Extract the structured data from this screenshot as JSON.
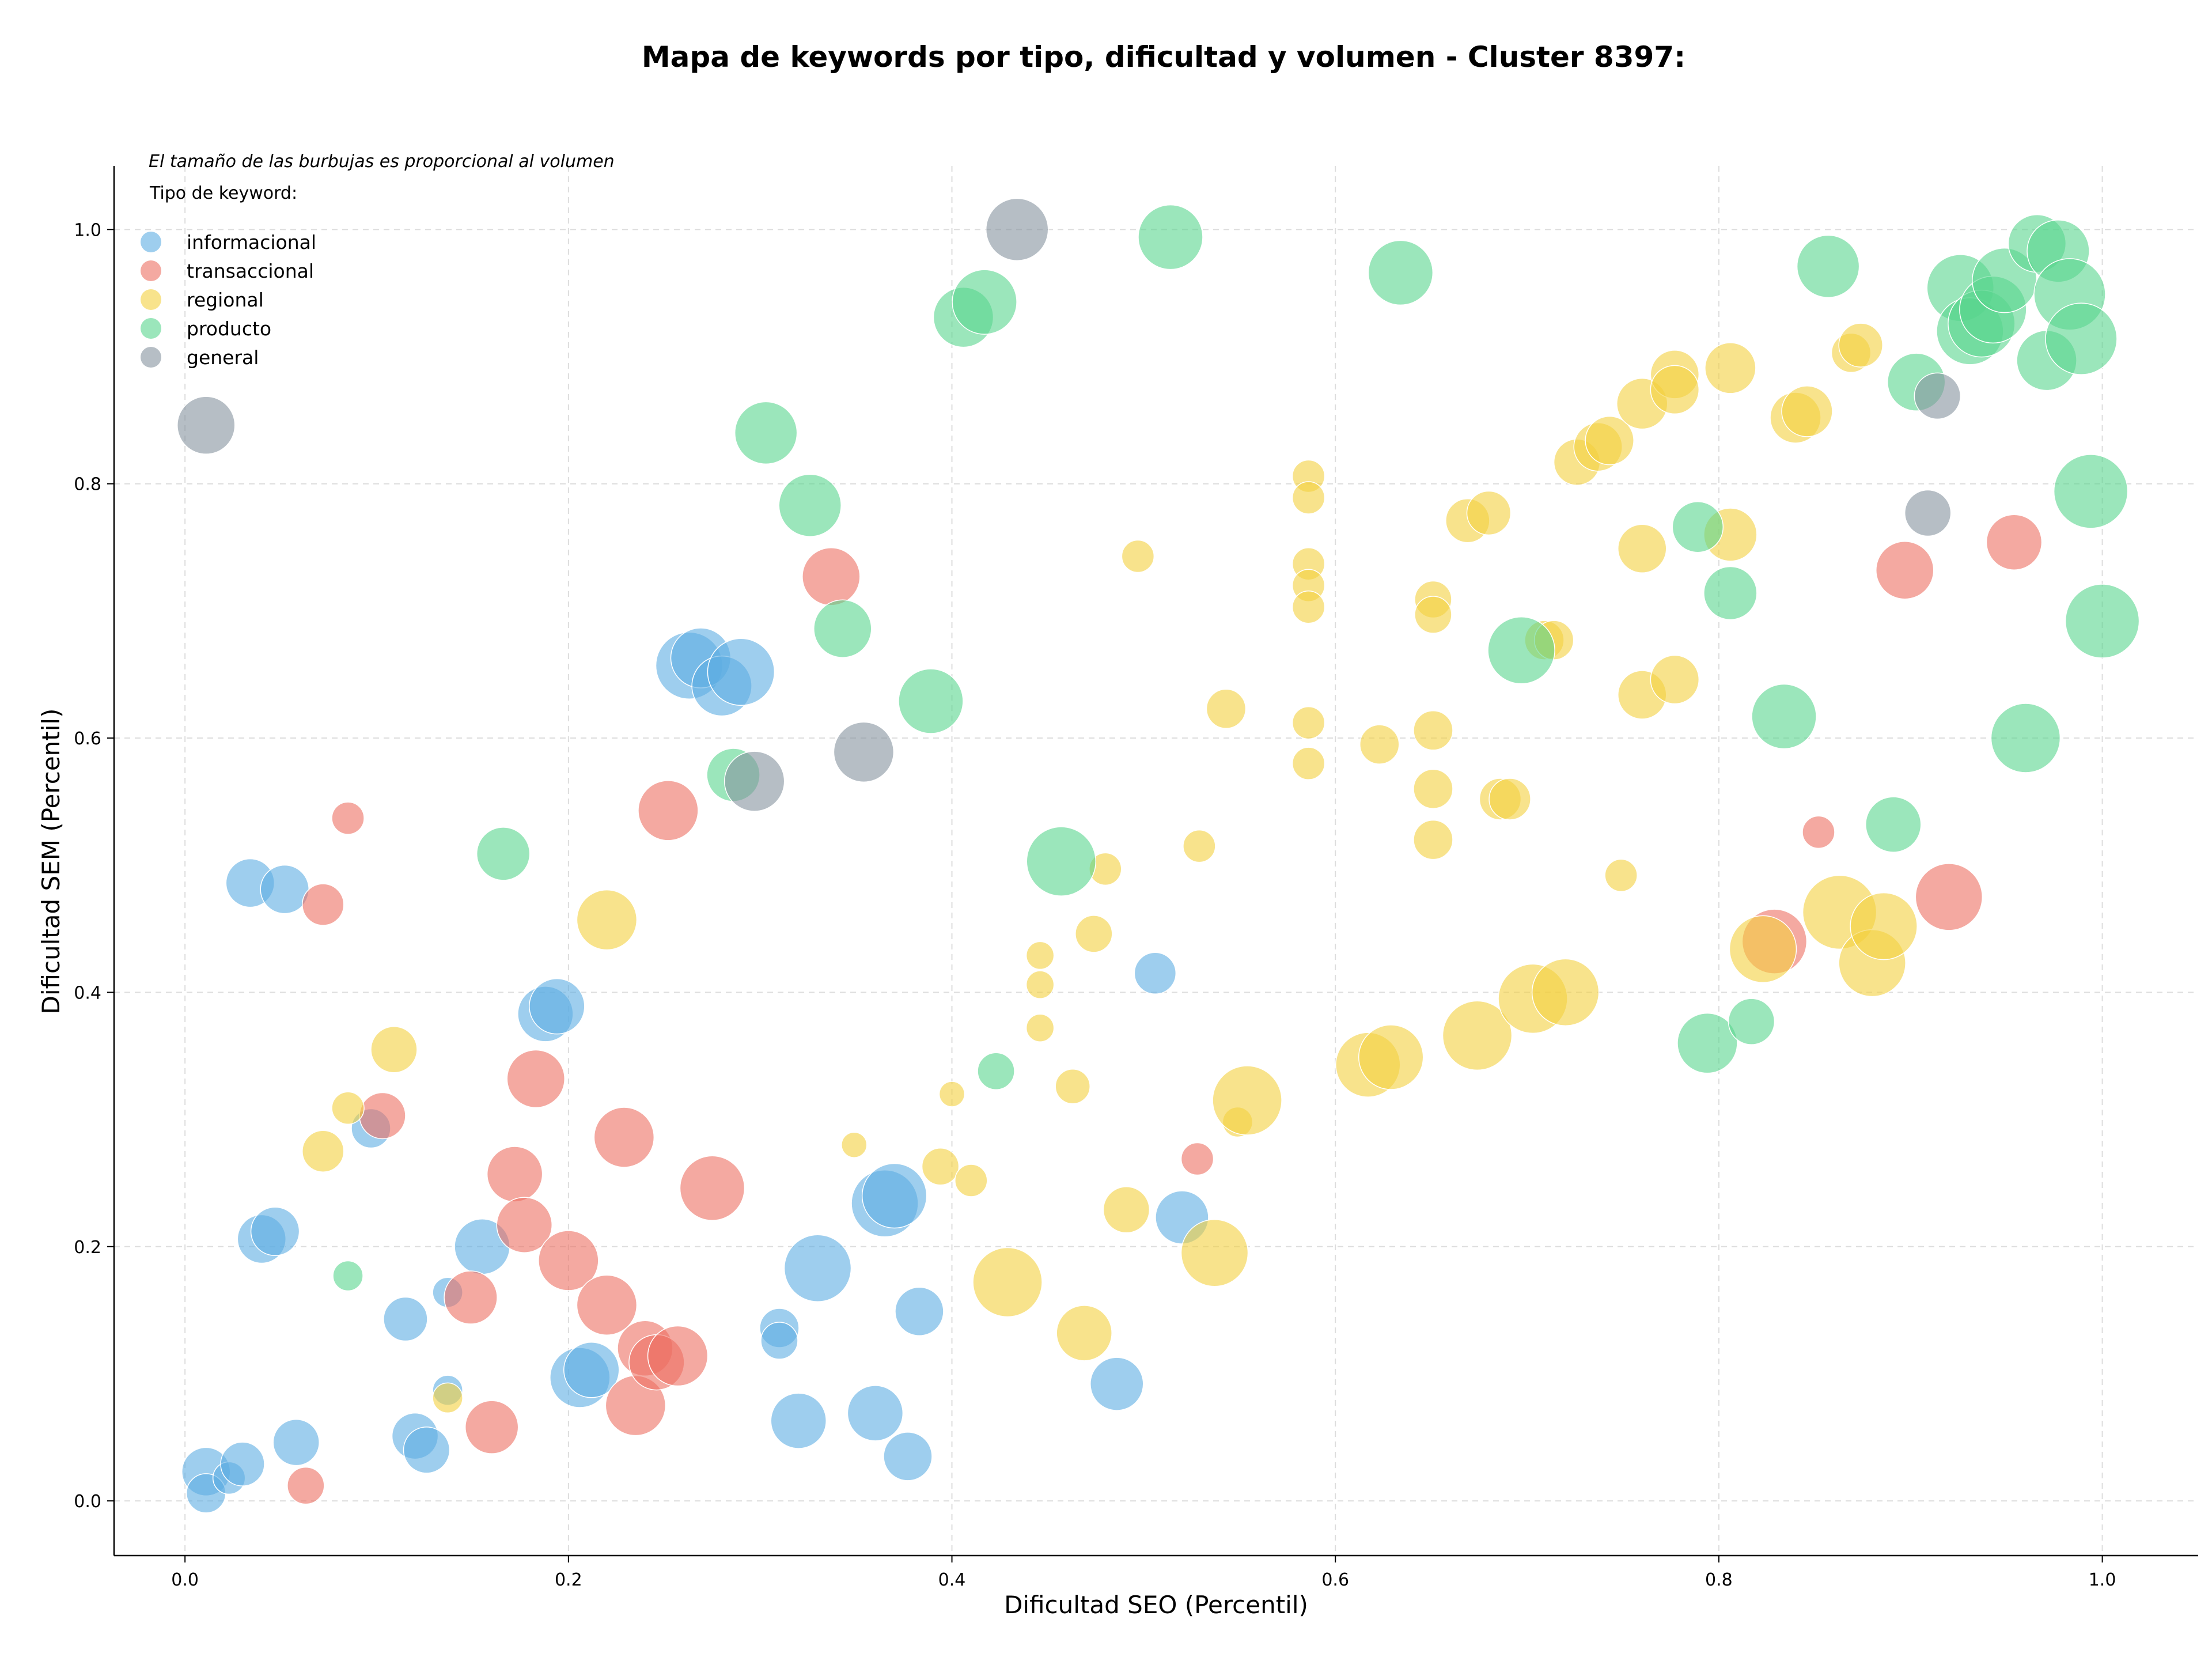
{
  "chart_data": {
    "type": "scatter",
    "title": "Mapa de keywords por tipo, dificultad y volumen - Cluster 8397:",
    "xlabel": "Dificultad SEO (Percentil)",
    "ylabel": "Dificultad SEM (Percentil)",
    "xlim": [
      -0.037,
      1.05
    ],
    "ylim": [
      -0.043,
      1.05
    ],
    "xticks": [
      "0.0",
      "0.2",
      "0.4",
      "0.6",
      "0.8",
      "1.0"
    ],
    "yticks": [
      "0.0",
      "0.2",
      "0.4",
      "0.6",
      "0.8",
      "1.0"
    ],
    "grid": true,
    "note": "El tamaño de las burbujas es proporcional al volumen",
    "legend": {
      "title": "Tipo de keyword:",
      "placement": "top-left"
    },
    "series": [
      {
        "name": "informacional",
        "color": "#5dade2",
        "points": [
          [
            0.011,
            0.023,
            42
          ],
          [
            0.011,
            0.006,
            34
          ],
          [
            0.023,
            0.018,
            28
          ],
          [
            0.03,
            0.029,
            38
          ],
          [
            0.058,
            0.046,
            40
          ],
          [
            0.04,
            0.206,
            42
          ],
          [
            0.047,
            0.212,
            42
          ],
          [
            0.034,
            0.486,
            42
          ],
          [
            0.052,
            0.481,
            42
          ],
          [
            0.097,
            0.293,
            34
          ],
          [
            0.115,
            0.143,
            38
          ],
          [
            0.12,
            0.051,
            40
          ],
          [
            0.126,
            0.04,
            40
          ],
          [
            0.137,
            0.164,
            26
          ],
          [
            0.137,
            0.087,
            26
          ],
          [
            0.155,
            0.2,
            48
          ],
          [
            0.188,
            0.383,
            48
          ],
          [
            0.194,
            0.389,
            48
          ],
          [
            0.206,
            0.097,
            52
          ],
          [
            0.212,
            0.103,
            48
          ],
          [
            0.263,
            0.657,
            58
          ],
          [
            0.269,
            0.663,
            52
          ],
          [
            0.28,
            0.641,
            52
          ],
          [
            0.29,
            0.652,
            58
          ],
          [
            0.31,
            0.136,
            34
          ],
          [
            0.31,
            0.126,
            32
          ],
          [
            0.32,
            0.063,
            48
          ],
          [
            0.33,
            0.183,
            58
          ],
          [
            0.36,
            0.069,
            48
          ],
          [
            0.365,
            0.234,
            58
          ],
          [
            0.37,
            0.24,
            56
          ],
          [
            0.377,
            0.035,
            42
          ],
          [
            0.383,
            0.149,
            42
          ],
          [
            0.486,
            0.092,
            46
          ],
          [
            0.506,
            0.415,
            36
          ],
          [
            0.52,
            0.223,
            46
          ]
        ]
      },
      {
        "name": "transaccional",
        "color": "#ec7063",
        "points": [
          [
            0.063,
            0.012,
            32
          ],
          [
            0.072,
            0.469,
            36
          ],
          [
            0.085,
            0.537,
            28
          ],
          [
            0.103,
            0.303,
            40
          ],
          [
            0.149,
            0.16,
            46
          ],
          [
            0.16,
            0.058,
            46
          ],
          [
            0.172,
            0.257,
            48
          ],
          [
            0.177,
            0.217,
            48
          ],
          [
            0.183,
            0.332,
            50
          ],
          [
            0.2,
            0.189,
            52
          ],
          [
            0.22,
            0.154,
            52
          ],
          [
            0.229,
            0.286,
            52
          ],
          [
            0.235,
            0.075,
            52
          ],
          [
            0.24,
            0.12,
            48
          ],
          [
            0.246,
            0.109,
            48
          ],
          [
            0.252,
            0.543,
            52
          ],
          [
            0.257,
            0.114,
            52
          ],
          [
            0.275,
            0.246,
            56
          ],
          [
            0.337,
            0.727,
            50
          ],
          [
            0.528,
            0.269,
            28
          ],
          [
            0.829,
            0.44,
            56
          ],
          [
            0.852,
            0.526,
            28
          ],
          [
            0.897,
            0.732,
            50
          ],
          [
            0.92,
            0.475,
            58
          ],
          [
            0.954,
            0.754,
            48
          ]
        ]
      },
      {
        "name": "regional",
        "color": "#f4d03f",
        "points": [
          [
            0.072,
            0.275,
            36
          ],
          [
            0.085,
            0.309,
            28
          ],
          [
            0.109,
            0.355,
            40
          ],
          [
            0.137,
            0.081,
            26
          ],
          [
            0.22,
            0.457,
            52
          ],
          [
            0.349,
            0.28,
            22
          ],
          [
            0.4,
            0.32,
            22
          ],
          [
            0.394,
            0.263,
            32
          ],
          [
            0.41,
            0.252,
            28
          ],
          [
            0.429,
            0.172,
            60
          ],
          [
            0.446,
            0.429,
            24
          ],
          [
            0.446,
            0.406,
            24
          ],
          [
            0.446,
            0.372,
            24
          ],
          [
            0.463,
            0.326,
            30
          ],
          [
            0.469,
            0.132,
            48
          ],
          [
            0.474,
            0.446,
            32
          ],
          [
            0.48,
            0.497,
            28
          ],
          [
            0.491,
            0.229,
            40
          ],
          [
            0.497,
            0.743,
            28
          ],
          [
            0.529,
            0.515,
            28
          ],
          [
            0.537,
            0.195,
            58
          ],
          [
            0.543,
            0.623,
            34
          ],
          [
            0.549,
            0.298,
            26
          ],
          [
            0.554,
            0.315,
            60
          ],
          [
            0.586,
            0.806,
            28
          ],
          [
            0.586,
            0.789,
            28
          ],
          [
            0.586,
            0.737,
            28
          ],
          [
            0.586,
            0.72,
            28
          ],
          [
            0.586,
            0.703,
            28
          ],
          [
            0.586,
            0.612,
            28
          ],
          [
            0.586,
            0.58,
            28
          ],
          [
            0.617,
            0.343,
            56
          ],
          [
            0.623,
            0.595,
            34
          ],
          [
            0.629,
            0.349,
            56
          ],
          [
            0.651,
            0.709,
            32
          ],
          [
            0.651,
            0.697,
            32
          ],
          [
            0.651,
            0.606,
            34
          ],
          [
            0.651,
            0.56,
            34
          ],
          [
            0.651,
            0.52,
            34
          ],
          [
            0.669,
            0.771,
            38
          ],
          [
            0.674,
            0.366,
            60
          ],
          [
            0.68,
            0.777,
            38
          ],
          [
            0.686,
            0.552,
            36
          ],
          [
            0.691,
            0.552,
            36
          ],
          [
            0.703,
            0.395,
            60
          ],
          [
            0.709,
            0.677,
            34
          ],
          [
            0.714,
            0.677,
            34
          ],
          [
            0.72,
            0.4,
            58
          ],
          [
            0.726,
            0.817,
            40
          ],
          [
            0.737,
            0.829,
            42
          ],
          [
            0.743,
            0.834,
            42
          ],
          [
            0.749,
            0.492,
            28
          ],
          [
            0.76,
            0.749,
            42
          ],
          [
            0.76,
            0.634,
            42
          ],
          [
            0.76,
            0.863,
            44
          ],
          [
            0.777,
            0.886,
            42
          ],
          [
            0.777,
            0.874,
            42
          ],
          [
            0.777,
            0.646,
            42
          ],
          [
            0.806,
            0.891,
            44
          ],
          [
            0.806,
            0.76,
            46
          ],
          [
            0.823,
            0.434,
            58
          ],
          [
            0.84,
            0.852,
            44
          ],
          [
            0.846,
            0.857,
            44
          ],
          [
            0.863,
            0.463,
            64
          ],
          [
            0.869,
            0.903,
            34
          ],
          [
            0.874,
            0.909,
            38
          ],
          [
            0.88,
            0.423,
            58
          ],
          [
            0.886,
            0.452,
            58
          ]
        ]
      },
      {
        "name": "producto",
        "color": "#58d68d",
        "points": [
          [
            0.085,
            0.177,
            26
          ],
          [
            0.166,
            0.509,
            46
          ],
          [
            0.286,
            0.571,
            46
          ],
          [
            0.303,
            0.84,
            54
          ],
          [
            0.326,
            0.783,
            54
          ],
          [
            0.343,
            0.686,
            50
          ],
          [
            0.389,
            0.629,
            56
          ],
          [
            0.406,
            0.931,
            52
          ],
          [
            0.417,
            0.943,
            56
          ],
          [
            0.423,
            0.338,
            32
          ],
          [
            0.457,
            0.503,
            60
          ],
          [
            0.514,
            0.994,
            56
          ],
          [
            0.634,
            0.966,
            56
          ],
          [
            0.697,
            0.669,
            58
          ],
          [
            0.789,
            0.766,
            44
          ],
          [
            0.794,
            0.36,
            52
          ],
          [
            0.806,
            0.714,
            46
          ],
          [
            0.817,
            0.377,
            40
          ],
          [
            0.834,
            0.617,
            56
          ],
          [
            0.857,
            0.971,
            54
          ],
          [
            0.891,
            0.532,
            48
          ],
          [
            0.903,
            0.88,
            50
          ],
          [
            0.926,
            0.954,
            58
          ],
          [
            0.931,
            0.92,
            58
          ],
          [
            0.937,
            0.926,
            58
          ],
          [
            0.943,
            0.937,
            58
          ],
          [
            0.949,
            0.96,
            56
          ],
          [
            0.96,
            0.6,
            60
          ],
          [
            0.966,
            0.989,
            50
          ],
          [
            0.971,
            0.897,
            52
          ],
          [
            0.977,
            0.983,
            54
          ],
          [
            0.983,
            0.949,
            62
          ],
          [
            0.989,
            0.914,
            62
          ],
          [
            0.994,
            0.794,
            64
          ],
          [
            1.0,
            0.692,
            64
          ]
        ]
      },
      {
        "name": "general",
        "color": "#85929e",
        "points": [
          [
            0.011,
            0.846,
            50
          ],
          [
            0.297,
            0.566,
            52
          ],
          [
            0.354,
            0.589,
            52
          ],
          [
            0.434,
            1.0,
            54
          ],
          [
            0.909,
            0.777,
            40
          ],
          [
            0.914,
            0.869,
            40
          ]
        ]
      }
    ]
  }
}
